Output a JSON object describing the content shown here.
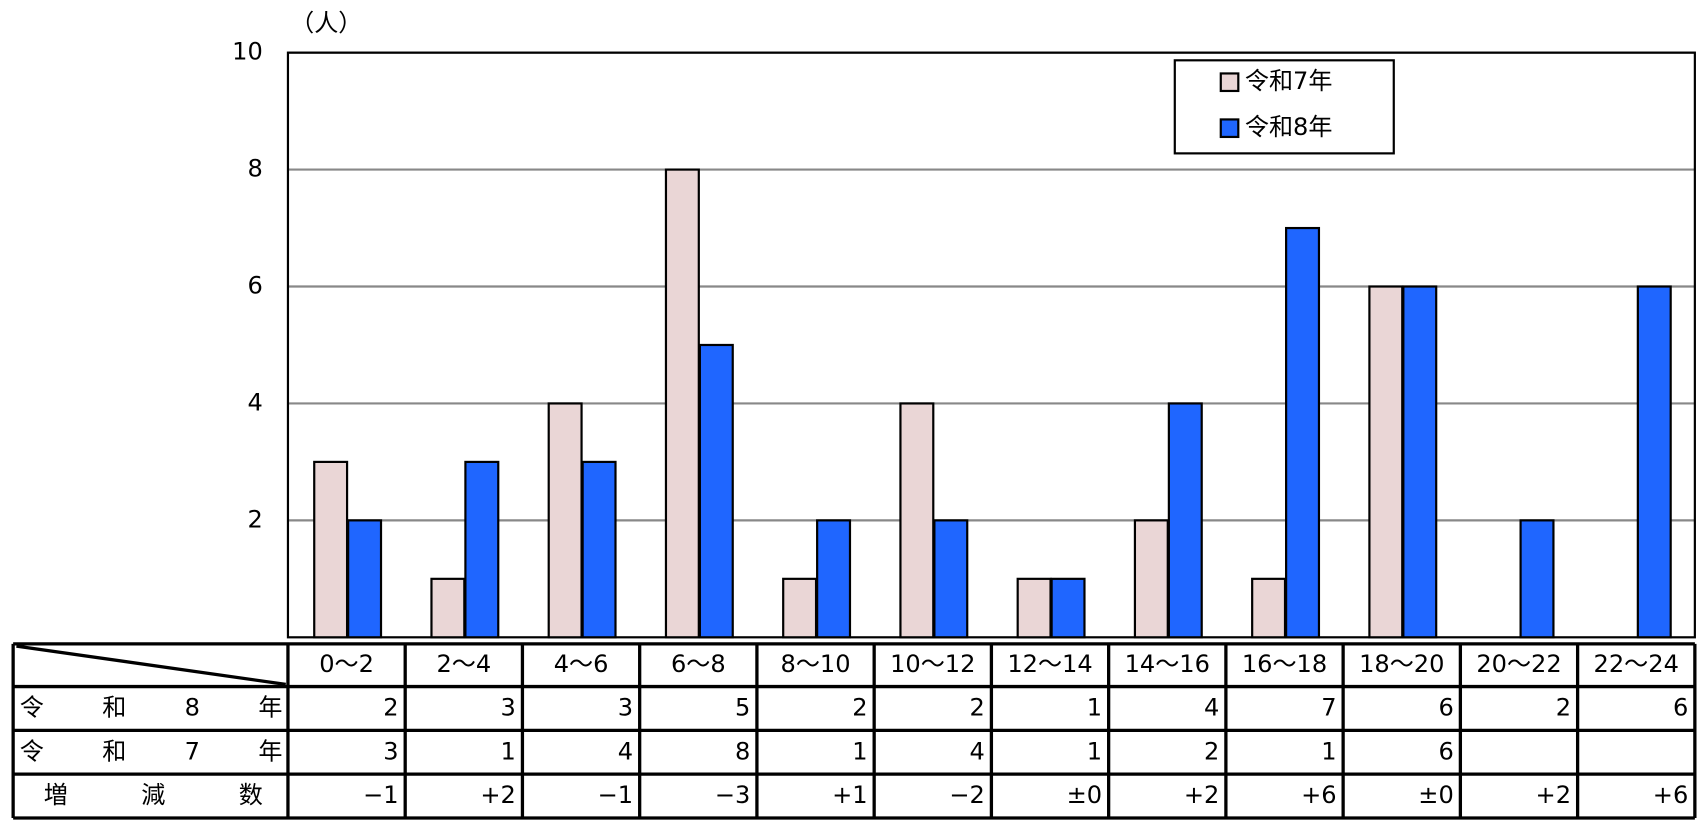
{
  "chart_data": {
    "type": "bar",
    "y_unit": "（人）",
    "categories": [
      "0～2",
      "2～4",
      "4～6",
      "6～8",
      "8～10",
      "10～12",
      "12～14",
      "14～16",
      "16～18",
      "18～20",
      "20～22",
      "22～24"
    ],
    "series": [
      {
        "name": "令和7年",
        "color": "#ead6d6",
        "values": [
          3,
          1,
          4,
          8,
          1,
          4,
          1,
          2,
          1,
          6,
          null,
          null
        ]
      },
      {
        "name": "令和8年",
        "color": "#1f66ff",
        "values": [
          2,
          3,
          3,
          5,
          2,
          2,
          1,
          4,
          7,
          6,
          2,
          6
        ]
      }
    ],
    "change": {
      "name": "増減数",
      "values": [
        -1,
        2,
        -1,
        -3,
        1,
        -2,
        0,
        2,
        6,
        0,
        2,
        6
      ],
      "value_labels": [
        "−1",
        "+2",
        "−1",
        "−3",
        "+1",
        "−2",
        "±0",
        "+2",
        "+6",
        "±0",
        "+2",
        "+6"
      ]
    },
    "ylim": [
      0,
      10
    ],
    "yticks": [
      2,
      4,
      6,
      8,
      10
    ],
    "grid": true,
    "legend": "top-right"
  }
}
